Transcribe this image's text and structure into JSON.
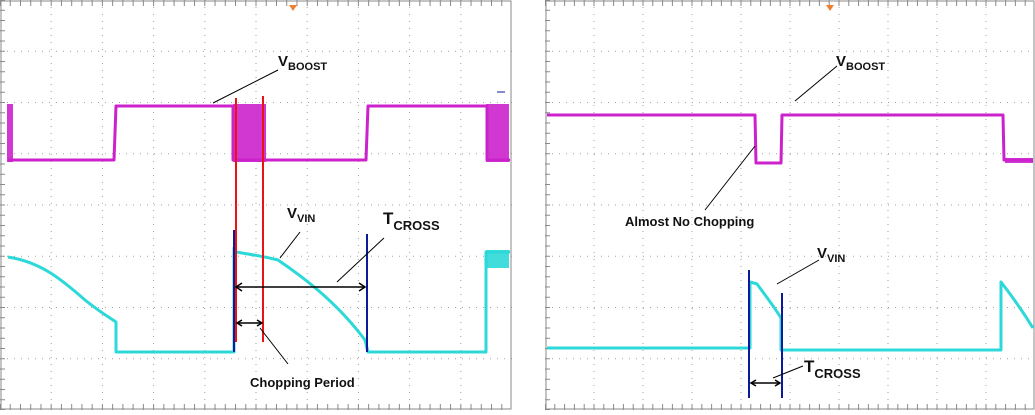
{
  "colors": {
    "boost": "#cc22cc",
    "vin": "#2cd8d8",
    "red_cursor": "#ee1111",
    "blue_cursor": "#0a1a99",
    "grid": "#8a8a8a",
    "trigger_marker": "#f08030",
    "annotation": "#111111"
  },
  "left_panel": {
    "vboost_label": {
      "main": "V",
      "sub": "BOOST"
    },
    "vvin_label": {
      "main": "V",
      "sub": "VIN"
    },
    "tcross_label": {
      "main": "T",
      "sub": "CROSS"
    },
    "chopping_label": "Chopping Period"
  },
  "right_panel": {
    "vboost_label": {
      "main": "V",
      "sub": "BOOST"
    },
    "vvin_label": {
      "main": "V",
      "sub": "VIN"
    },
    "tcross_label": {
      "main": "T",
      "sub": "CROSS"
    },
    "almost_label": "Almost No Chopping"
  }
}
